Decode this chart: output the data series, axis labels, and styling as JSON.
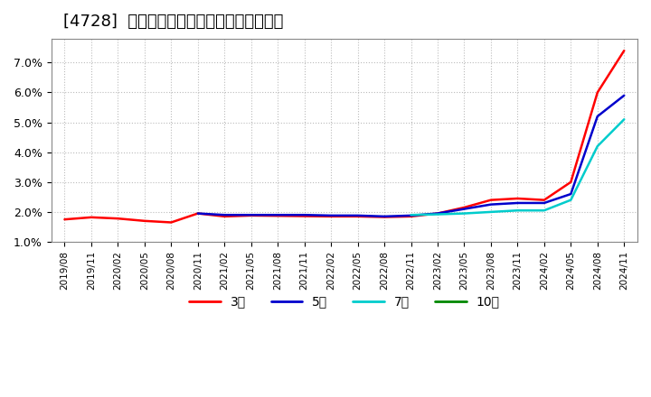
{
  "title": "[4728]  経常利益マージンの標準偏差の推移",
  "title_fontsize": 13,
  "background_color": "#ffffff",
  "plot_bg_color": "#ffffff",
  "grid_color": "#aaaaaa",
  "ylim": [
    0.01,
    0.078
  ],
  "yticks": [
    0.01,
    0.02,
    0.03,
    0.04,
    0.05,
    0.06,
    0.07
  ],
  "legend_labels": [
    "3年",
    "5年",
    "7年",
    "10年"
  ],
  "legend_colors": [
    "#ff0000",
    "#0000cc",
    "#00cccc",
    "#008800"
  ],
  "line_width": 1.8,
  "dates": [
    "2019/08",
    "2019/11",
    "2020/02",
    "2020/05",
    "2020/08",
    "2020/11",
    "2021/02",
    "2021/05",
    "2021/08",
    "2021/11",
    "2022/02",
    "2022/05",
    "2022/08",
    "2022/11",
    "2023/02",
    "2023/05",
    "2023/08",
    "2023/11",
    "2024/02",
    "2024/05",
    "2024/08",
    "2024/11"
  ],
  "series_3y": [
    0.0175,
    0.0182,
    0.0178,
    0.017,
    0.0165,
    0.0195,
    0.0185,
    0.0188,
    0.0187,
    0.0186,
    0.0185,
    0.0185,
    0.0183,
    0.0185,
    0.0195,
    0.0215,
    0.024,
    0.0245,
    0.024,
    0.03,
    0.06,
    0.074
  ],
  "series_5y": [
    null,
    null,
    null,
    null,
    null,
    0.0195,
    0.019,
    0.019,
    0.019,
    0.019,
    0.0188,
    0.0188,
    0.0185,
    0.0188,
    0.0195,
    0.021,
    0.0225,
    0.023,
    0.023,
    0.026,
    0.052,
    0.059
  ],
  "series_7y": [
    null,
    null,
    null,
    null,
    null,
    null,
    null,
    null,
    null,
    null,
    null,
    null,
    null,
    0.019,
    0.0192,
    0.0195,
    0.02,
    0.0205,
    0.0205,
    0.024,
    0.042,
    0.051
  ],
  "series_10y": [
    null,
    null,
    null,
    null,
    null,
    null,
    null,
    null,
    null,
    null,
    null,
    null,
    null,
    null,
    null,
    null,
    null,
    null,
    null,
    null,
    null,
    null
  ]
}
